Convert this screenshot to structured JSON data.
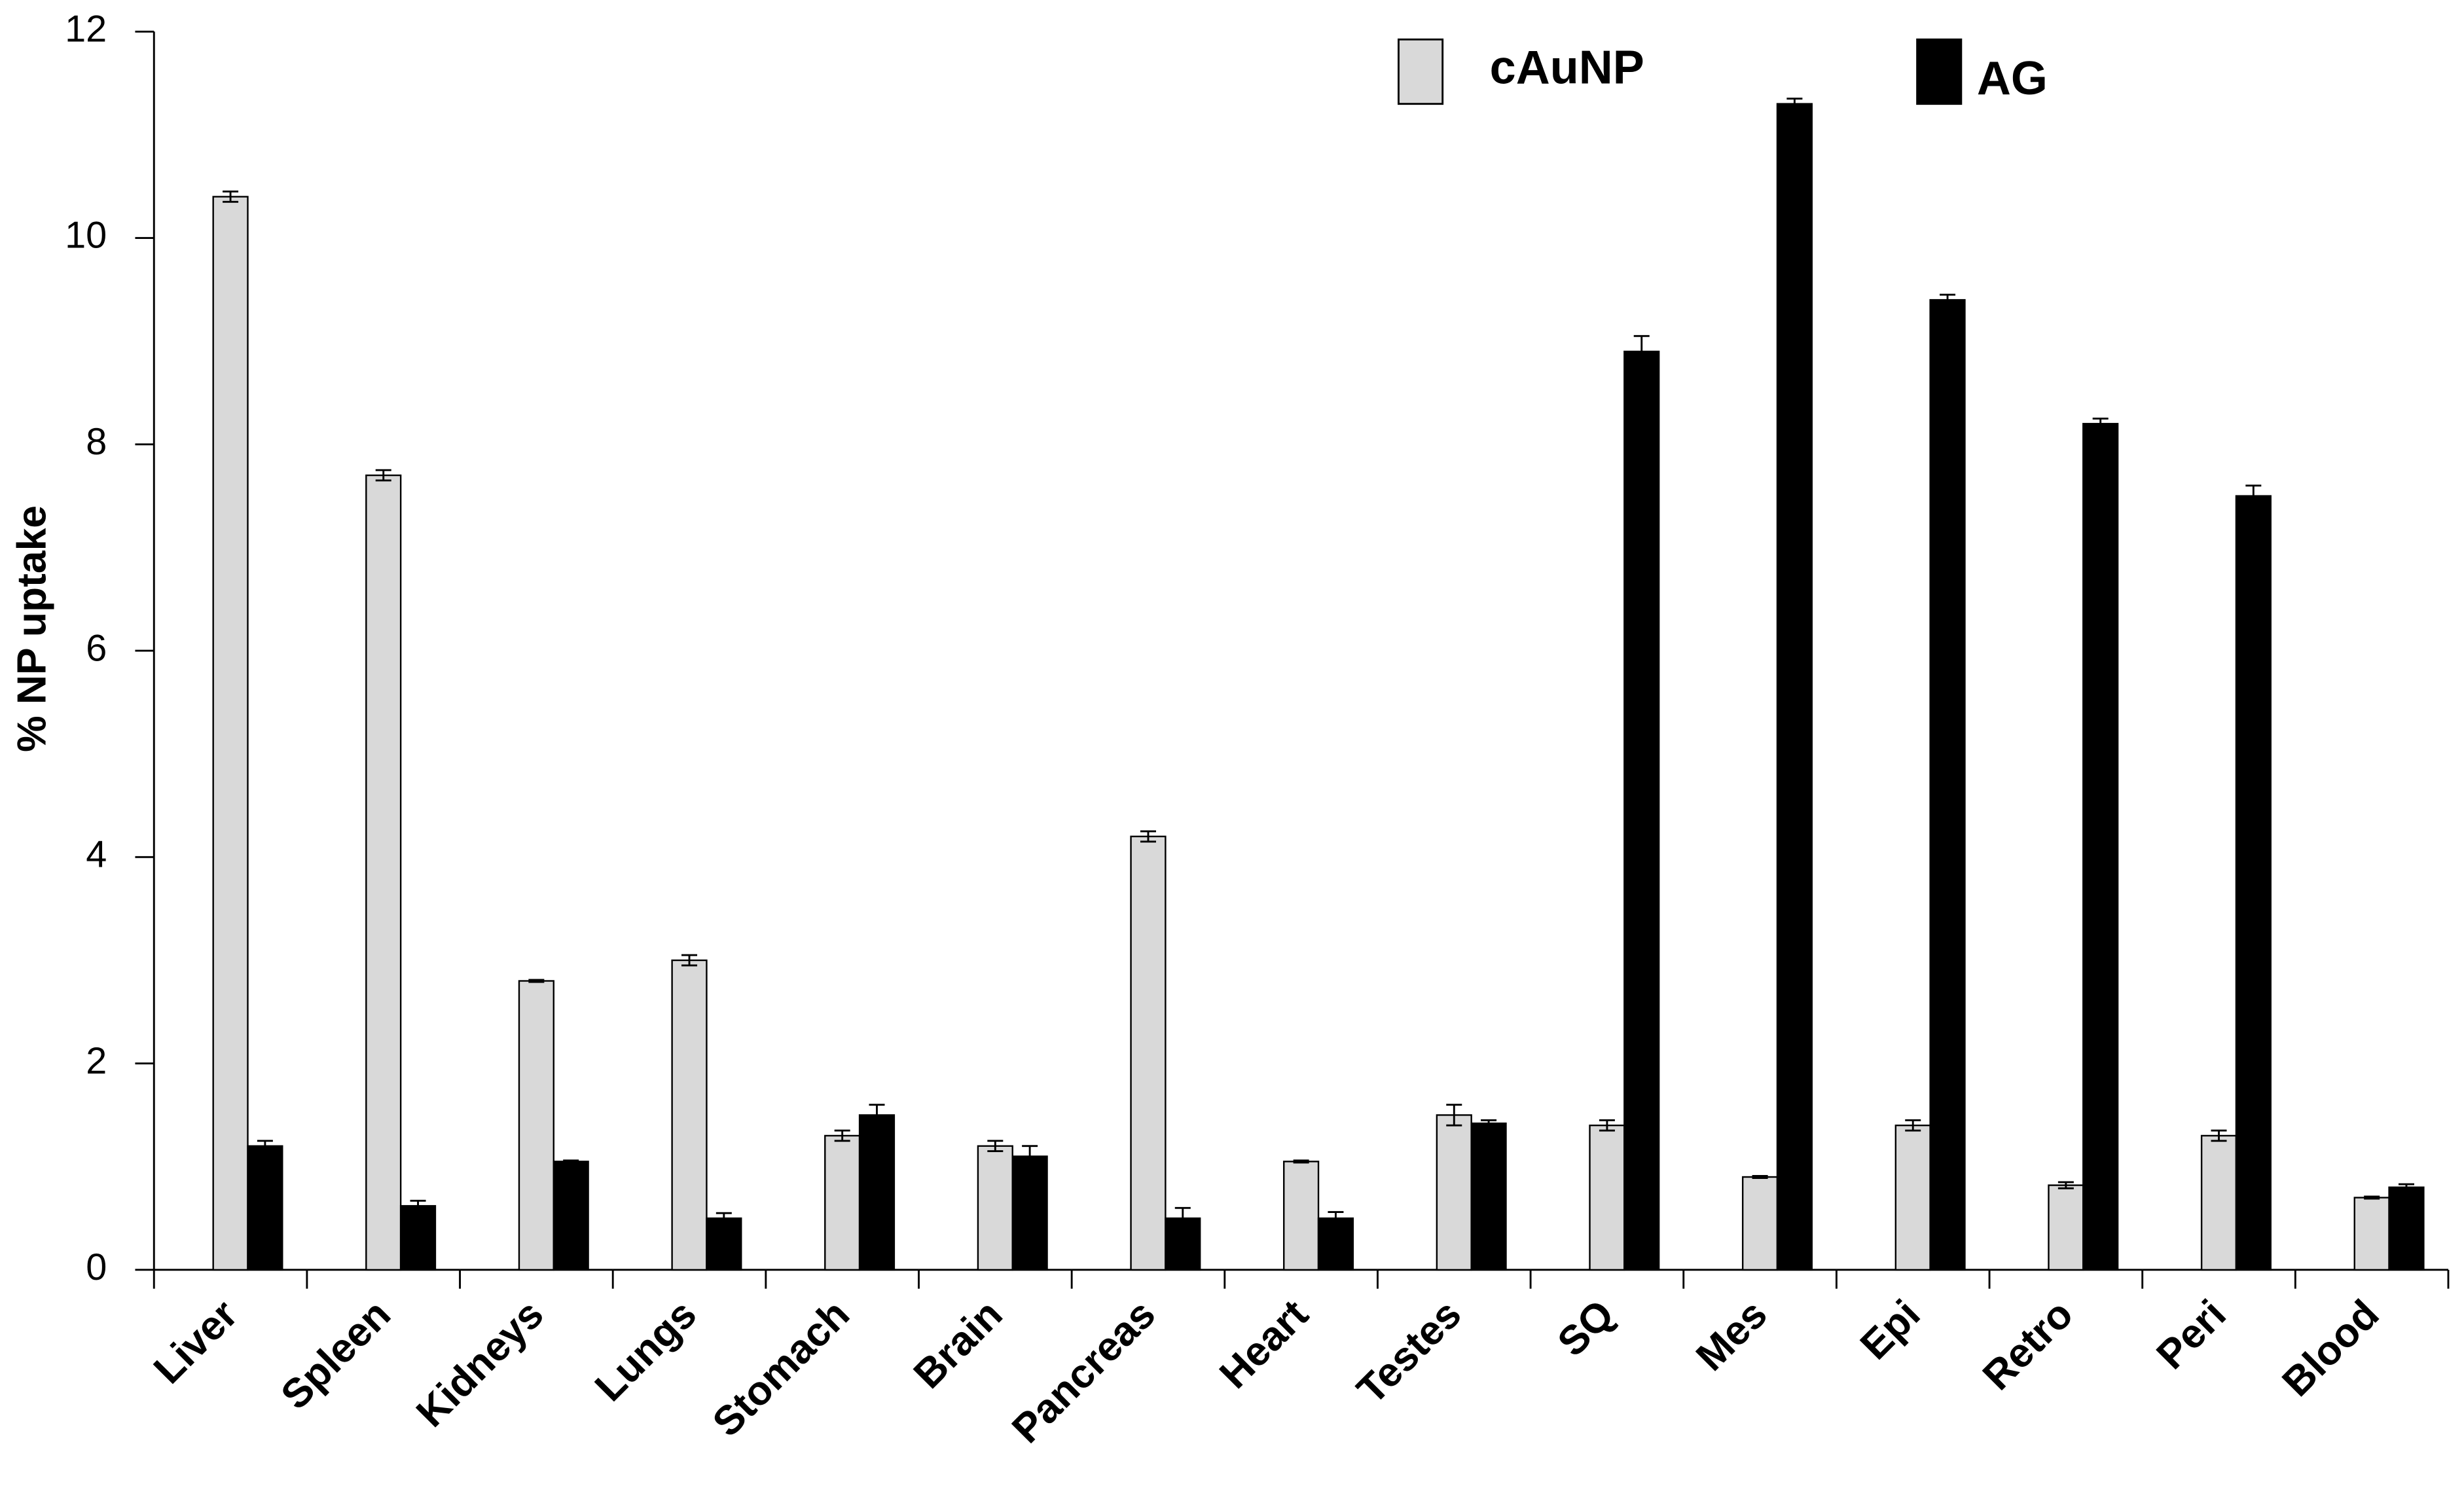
{
  "chart_data": {
    "type": "bar",
    "y_label": "% NP uptake",
    "categories": [
      "Liver",
      "Spleen",
      "Kidneys",
      "Lungs",
      "Stomach",
      "Brain",
      "Pancreas",
      "Heart",
      "Testes",
      "SQ",
      "Mes",
      "Epi",
      "Retro",
      "Peri",
      "Blood"
    ],
    "series": [
      {
        "name": "cAuNP",
        "color": "#d9d9d9",
        "values": [
          10.4,
          7.7,
          2.8,
          3.0,
          1.3,
          1.2,
          4.2,
          1.05,
          1.5,
          1.4,
          0.9,
          1.4,
          0.82,
          1.3,
          0.7
        ],
        "errors": [
          0.05,
          0.05,
          0.01,
          0.05,
          0.05,
          0.05,
          0.05,
          0.01,
          0.1,
          0.05,
          0.01,
          0.05,
          0.03,
          0.05,
          0.01
        ]
      },
      {
        "name": "AG",
        "color": "#000000",
        "values": [
          1.2,
          0.62,
          1.05,
          0.5,
          1.5,
          1.1,
          0.5,
          0.5,
          1.42,
          8.9,
          11.3,
          9.4,
          8.2,
          7.5,
          0.8
        ],
        "errors": [
          0.05,
          0.05,
          0.01,
          0.05,
          0.1,
          0.1,
          0.1,
          0.06,
          0.03,
          0.15,
          0.05,
          0.05,
          0.05,
          0.1,
          0.03
        ]
      }
    ],
    "ylim": [
      0,
      12
    ],
    "yticks": [
      0,
      2,
      4,
      6,
      8,
      10,
      12
    ]
  }
}
